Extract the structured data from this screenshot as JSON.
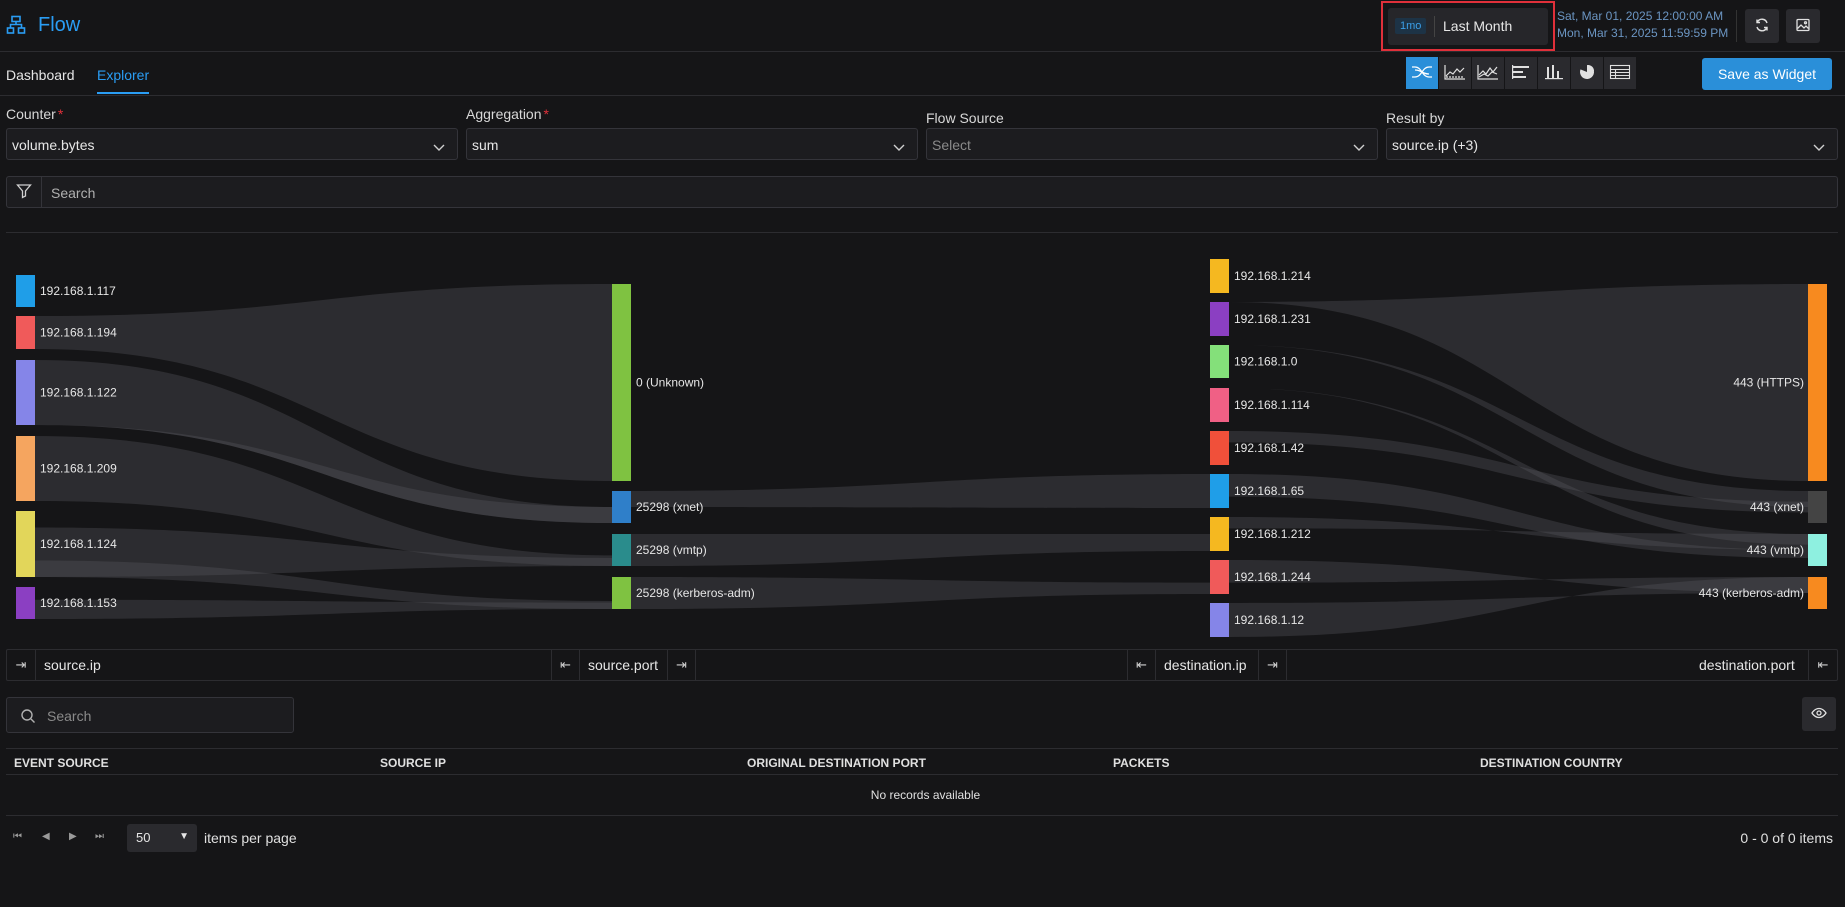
{
  "header": {
    "title": "Flow",
    "time_badge": "1mo",
    "time_label": "Last Month",
    "date_start": "Sat, Mar 01, 2025 12:00:00 AM",
    "date_end": "Mon, Mar 31, 2025 11:59:59 PM"
  },
  "tabs": [
    {
      "label": "Dashboard",
      "active": false
    },
    {
      "label": "Explorer",
      "active": true
    }
  ],
  "toolbar": {
    "save_label": "Save as Widget",
    "viz_types": [
      "sankey-icon",
      "area-chart-icon",
      "line-chart-icon",
      "bar-horizontal-icon",
      "bar-vertical-icon",
      "pie-chart-icon",
      "grid-icon"
    ]
  },
  "form": {
    "counter": {
      "label": "Counter",
      "required": "*",
      "value": "volume.bytes"
    },
    "aggregation": {
      "label": "Aggregation",
      "required": "*",
      "value": "sum"
    },
    "flow_source": {
      "label": "Flow Source",
      "placeholder": "Select"
    },
    "result_by": {
      "label": "Result by",
      "value": "source.ip (+3)"
    }
  },
  "filter": {
    "placeholder": "Search"
  },
  "sankey": {
    "columns": [
      {
        "label": "source.ip",
        "nodes": [
          {
            "name": "192.168.1.117",
            "color": "#1f9ee8"
          },
          {
            "name": "192.168.1.194",
            "color": "#f05a5a"
          },
          {
            "name": "192.168.1.122",
            "color": "#8585e8"
          },
          {
            "name": "192.168.1.209",
            "color": "#f5a55f"
          },
          {
            "name": "192.168.1.124",
            "color": "#e2d65a"
          },
          {
            "name": "192.168.1.153",
            "color": "#8b3fc2"
          }
        ]
      },
      {
        "label": "source.port",
        "nodes": [
          {
            "name": "0 (Unknown)",
            "color": "#7fc241"
          },
          {
            "name": "25298 (xnet)",
            "color": "#2f7fc9"
          },
          {
            "name": "25298 (vmtp)",
            "color": "#2a8c8c"
          },
          {
            "name": "25298 (kerberos-adm)",
            "color": "#7fc241"
          }
        ]
      },
      {
        "label": "destination.ip",
        "nodes": [
          {
            "name": "192.168.1.214",
            "color": "#f5b820"
          },
          {
            "name": "192.168.1.231",
            "color": "#8b3fc2"
          },
          {
            "name": "192.168.1.0",
            "color": "#84e07a"
          },
          {
            "name": "192.168.1.114",
            "color": "#f06085"
          },
          {
            "name": "192.168.1.42",
            "color": "#f0503a"
          },
          {
            "name": "192.168.1.65",
            "color": "#1f9ee8"
          },
          {
            "name": "192.168.1.212",
            "color": "#f5b820"
          },
          {
            "name": "192.168.1.244",
            "color": "#f05a5a"
          },
          {
            "name": "192.168.1.12",
            "color": "#8585e8"
          }
        ]
      },
      {
        "label": "destination.port",
        "nodes": [
          {
            "name": "443 (HTTPS)",
            "color": "#f78a1f"
          },
          {
            "name": "443 (xnet)",
            "color": "#444444"
          },
          {
            "name": "443 (vmtp)",
            "color": "#8ef0e0"
          },
          {
            "name": "443 (kerberos-adm)",
            "color": "#f78a1f"
          }
        ]
      }
    ]
  },
  "table": {
    "search_placeholder": "Search",
    "columns": [
      "EVENT SOURCE",
      "SOURCE IP",
      "ORIGINAL DESTINATION PORT",
      "PACKETS",
      "DESTINATION COUNTRY"
    ],
    "empty_text": "No records available",
    "page_size": "50",
    "items_per_page": "items per page",
    "count_text": "0 - 0 of 0 items"
  }
}
